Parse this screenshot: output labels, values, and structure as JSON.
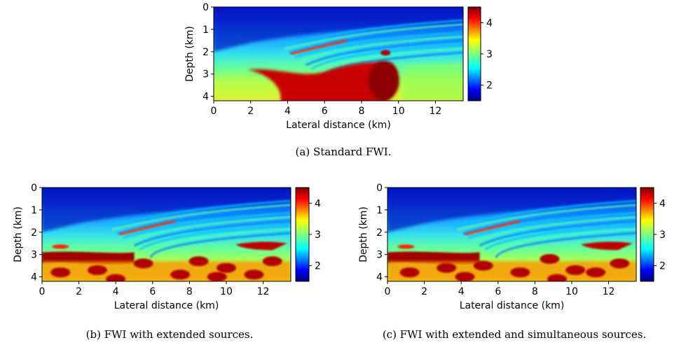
{
  "figure": {
    "captions": {
      "a": "(a) Standard FWI.",
      "b": "(b) FWI with extended sources.",
      "c": "(c) FWI with extended and simultaneous sources."
    }
  },
  "chart_data": [
    {
      "type": "heatmap",
      "panel": "a",
      "title": "",
      "xlabel": "Lateral distance (km)",
      "ylabel": "Depth (km)",
      "xlim": [
        0,
        13.5
      ],
      "ylim": [
        0,
        4.2
      ],
      "xticks": [
        "0",
        "2",
        "4",
        "6",
        "8",
        "10",
        "12"
      ],
      "yticks": [
        "0",
        "1",
        "2",
        "3",
        "4"
      ],
      "colorbar": {
        "range": [
          1.5,
          4.5
        ],
        "ticks": [
          "2",
          "3",
          "4"
        ],
        "colormap": "jet"
      }
    },
    {
      "type": "heatmap",
      "panel": "b",
      "title": "",
      "xlabel": "Lateral distance (km)",
      "ylabel": "Depth (km)",
      "xlim": [
        0,
        13.5
      ],
      "ylim": [
        0,
        4.2
      ],
      "xticks": [
        "0",
        "2",
        "4",
        "6",
        "8",
        "10",
        "12"
      ],
      "yticks": [
        "0",
        "1",
        "2",
        "3",
        "4"
      ],
      "colorbar": {
        "range": [
          1.5,
          4.5
        ],
        "ticks": [
          "2",
          "3",
          "4"
        ],
        "colormap": "jet"
      }
    },
    {
      "type": "heatmap",
      "panel": "c",
      "title": "",
      "xlabel": "Lateral distance (km)",
      "ylabel": "Depth (km)",
      "xlim": [
        0,
        13.5
      ],
      "ylim": [
        0,
        4.2
      ],
      "xticks": [
        "0",
        "2",
        "4",
        "6",
        "8",
        "10",
        "12"
      ],
      "yticks": [
        "0",
        "1",
        "2",
        "3",
        "4"
      ],
      "colorbar": {
        "range": [
          1.5,
          4.5
        ],
        "ticks": [
          "2",
          "3",
          "4"
        ],
        "colormap": "jet"
      }
    }
  ]
}
